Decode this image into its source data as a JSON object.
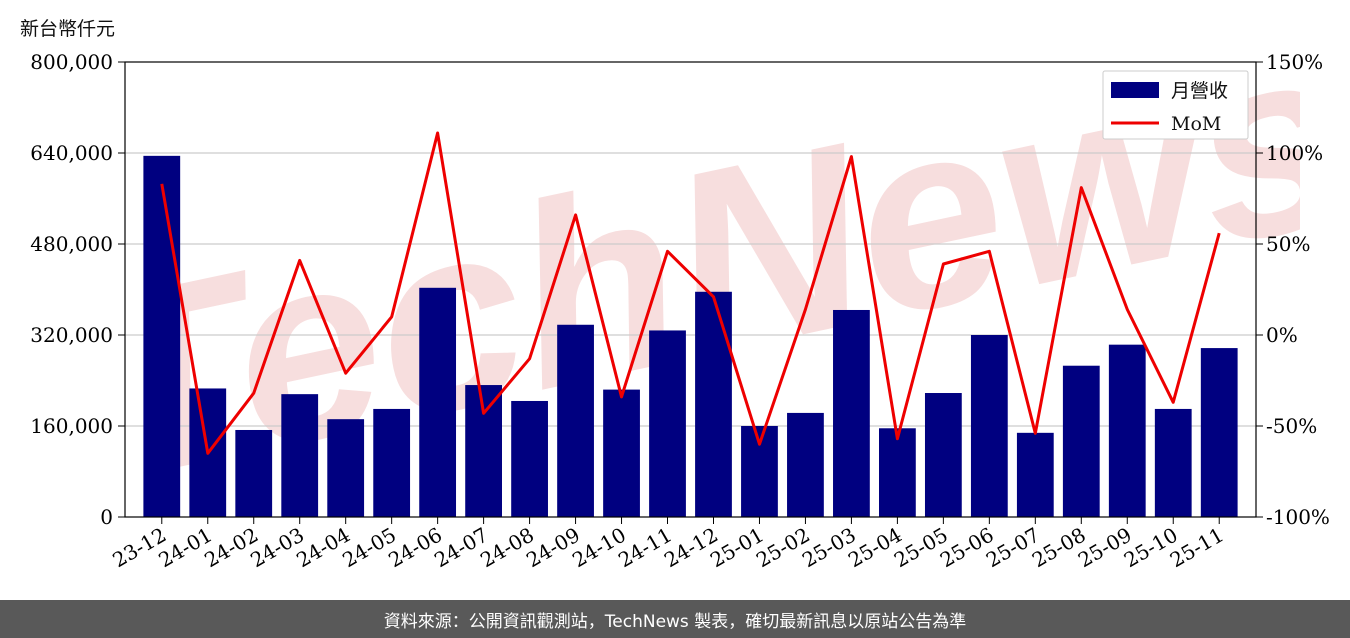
{
  "unit_label": "新台幣仟元",
  "footer_text": "資料來源：公開資訊觀測站，TechNews 製表，確切最新訊息以原站公告為準",
  "watermark_text": "TechNews",
  "colors": {
    "bar": "#000080",
    "line": "#ee0000",
    "grid": "#cccccc",
    "watermark": "#f7dede",
    "footer_bg": "#595959"
  },
  "chart_data": {
    "type": "bar",
    "categories": [
      "23-12",
      "24-01",
      "24-02",
      "24-03",
      "24-04",
      "24-05",
      "24-06",
      "24-07",
      "24-08",
      "24-09",
      "24-10",
      "24-11",
      "24-12",
      "25-01",
      "25-02",
      "25-03",
      "25-04",
      "25-05",
      "25-06",
      "25-07",
      "25-08",
      "25-09",
      "25-10",
      "25-11"
    ],
    "series": [
      {
        "name": "月營收",
        "type": "bar",
        "axis": "left",
        "values": [
          635000,
          226000,
          153000,
          216000,
          172000,
          190000,
          403000,
          232000,
          204000,
          338000,
          224000,
          328000,
          396000,
          160000,
          183000,
          364000,
          156000,
          218000,
          320000,
          148000,
          266000,
          303000,
          190000,
          297000
        ]
      },
      {
        "name": "MoM",
        "type": "line",
        "axis": "right",
        "values": [
          83,
          -65,
          -32,
          41,
          -21,
          10,
          111,
          -43,
          -13,
          66,
          -34,
          46,
          21,
          -60,
          14,
          98,
          -57,
          39,
          46,
          -54,
          81,
          14,
          -37,
          56
        ]
      }
    ],
    "left_axis": {
      "min": 0,
      "max": 800000,
      "ticks": [
        0,
        160000,
        320000,
        480000,
        640000,
        800000
      ],
      "tick_labels": [
        "0",
        "160,000",
        "320,000",
        "480,000",
        "640,000",
        "800,000"
      ]
    },
    "right_axis": {
      "min": -100,
      "max": 150,
      "ticks": [
        -100,
        -50,
        0,
        50,
        100,
        150
      ],
      "tick_labels": [
        "-100%",
        "-50%",
        "0%",
        "50%",
        "100%",
        "150%"
      ]
    },
    "grid": true,
    "legend_position": "top-right"
  }
}
